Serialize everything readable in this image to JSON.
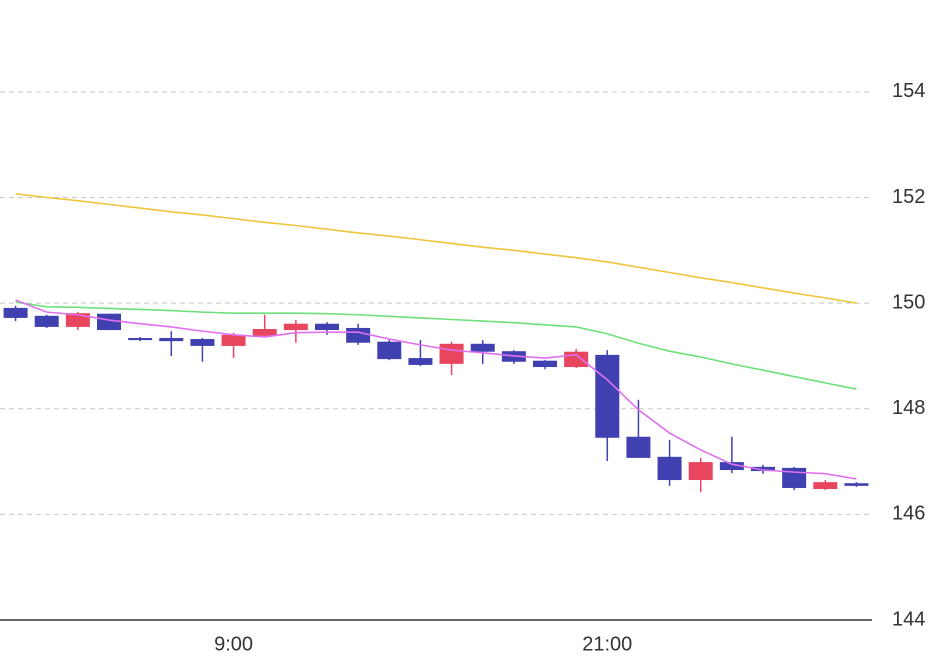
{
  "chart_data": {
    "type": "candlestick",
    "categories": [
      null,
      null,
      null,
      null,
      null,
      null,
      null,
      "9:00",
      null,
      null,
      null,
      null,
      null,
      null,
      null,
      null,
      null,
      null,
      null,
      "21:00",
      null,
      null,
      null,
      null,
      null,
      null,
      null,
      null
    ],
    "open": [
      149.91,
      149.76,
      149.55,
      149.8,
      149.34,
      149.34,
      149.32,
      149.19,
      149.38,
      149.49,
      149.61,
      149.53,
      149.27,
      148.96,
      148.85,
      149.23,
      149.09,
      148.91,
      148.79,
      149.02,
      147.47,
      147.09,
      146.65,
      146.99,
      146.9,
      146.88,
      146.48,
      146.59
    ],
    "high": [
      149.95,
      149.78,
      149.83,
      149.8,
      149.36,
      149.47,
      149.34,
      149.44,
      149.78,
      149.68,
      149.64,
      149.61,
      149.3,
      149.3,
      149.27,
      149.3,
      149.11,
      148.92,
      149.13,
      149.11,
      148.17,
      147.41,
      147.07,
      147.47,
      146.94,
      146.9,
      146.65,
      146.61
    ],
    "low": [
      149.66,
      149.53,
      149.49,
      149.49,
      149.28,
      149.0,
      148.89,
      148.96,
      149.36,
      149.25,
      149.4,
      149.21,
      148.92,
      148.81,
      148.64,
      148.85,
      148.85,
      148.75,
      148.77,
      147.01,
      147.07,
      146.54,
      146.42,
      146.78,
      146.77,
      146.46,
      146.46,
      146.52
    ],
    "close": [
      149.72,
      149.55,
      149.81,
      149.49,
      149.3,
      149.28,
      149.19,
      149.4,
      149.51,
      149.61,
      149.49,
      149.25,
      148.94,
      148.83,
      149.23,
      149.08,
      148.89,
      148.79,
      149.08,
      147.45,
      147.07,
      146.65,
      146.99,
      146.84,
      146.82,
      146.5,
      146.61,
      146.54
    ],
    "up_color": "#e8455e",
    "down_color": "#4040b0",
    "lines": [
      {
        "color": "#f0c43c",
        "values": [
          152.07,
          152.0,
          151.94,
          151.87,
          151.8,
          151.73,
          151.67,
          151.6,
          151.53,
          151.47,
          151.4,
          151.33,
          151.27,
          151.2,
          151.13,
          151.06,
          151.0,
          150.93,
          150.86,
          150.78,
          150.68,
          150.58,
          150.48,
          150.39,
          150.29,
          150.19,
          150.1,
          150.0
        ]
      },
      {
        "color": "#6ee07a",
        "values": [
          150.02,
          149.93,
          149.92,
          149.9,
          149.88,
          149.86,
          149.83,
          149.81,
          149.81,
          149.81,
          149.8,
          149.78,
          149.75,
          149.72,
          149.69,
          149.66,
          149.63,
          149.59,
          149.55,
          149.42,
          149.24,
          149.09,
          148.98,
          148.85,
          148.73,
          148.61,
          148.49,
          148.37
        ]
      },
      {
        "color": "#e070f0",
        "values": [
          150.06,
          149.83,
          149.78,
          149.68,
          149.61,
          149.55,
          149.47,
          149.4,
          149.36,
          149.44,
          149.45,
          149.45,
          149.32,
          149.21,
          149.11,
          149.06,
          149.0,
          148.96,
          149.02,
          148.55,
          147.98,
          147.54,
          147.22,
          146.95,
          146.84,
          146.8,
          146.77,
          146.67
        ]
      }
    ],
    "ylim": [
      144,
      155.74
    ],
    "yticks": [
      144,
      146,
      148,
      150,
      152,
      154
    ],
    "grid": true
  }
}
